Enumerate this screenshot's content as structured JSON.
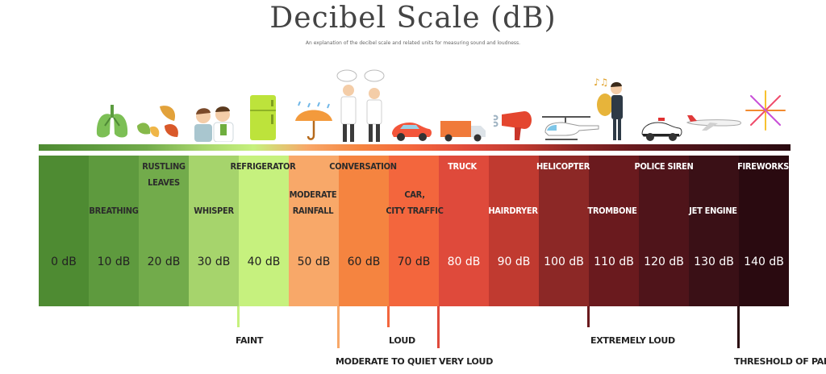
{
  "header": {
    "title": "Decibel Scale (dB)",
    "subtitle": "An explanation of the decibel scale and related units for measuring sound and loudness."
  },
  "scale": {
    "levels": [
      {
        "db": "0 dB",
        "color": "#4e8b32",
        "text": "#222222"
      },
      {
        "db": "10 dB",
        "color": "#5e9a3e",
        "text": "#222222"
      },
      {
        "db": "20 dB",
        "color": "#72ab4b",
        "text": "#222222"
      },
      {
        "db": "30 dB",
        "color": "#a6d46c",
        "text": "#222222"
      },
      {
        "db": "40 dB",
        "color": "#c6f17e",
        "text": "#222222"
      },
      {
        "db": "50 dB",
        "color": "#f8a869",
        "text": "#222222"
      },
      {
        "db": "60 dB",
        "color": "#f58440",
        "text": "#222222"
      },
      {
        "db": "70 dB",
        "color": "#f3663d",
        "text": "#222222"
      },
      {
        "db": "80 dB",
        "color": "#df4a3b",
        "text": "#ffffff"
      },
      {
        "db": "90 dB",
        "color": "#c03a30",
        "text": "#ffffff"
      },
      {
        "db": "100 dB",
        "color": "#8c2826",
        "text": "#ffffff"
      },
      {
        "db": "110 dB",
        "color": "#6a1a1e",
        "text": "#ffffff"
      },
      {
        "db": "120 dB",
        "color": "#4f141a",
        "text": "#ffffff"
      },
      {
        "db": "130 dB",
        "color": "#3a1016",
        "text": "#ffffff"
      },
      {
        "db": "140 dB",
        "color": "#2a0a10",
        "text": "#ffffff"
      }
    ],
    "sources": {
      "breathing": "BREATHING",
      "rustling_leaves": "RUSTLING\nLEAVES",
      "whisper": "WHISPER",
      "refrigerator": "REFRIGERATOR",
      "moderate_rainfall": "MODERATE\nRAINFALL",
      "conversation": "CONVERSATION",
      "car_city_traffic": "CAR,\nCITY TRAFFIC",
      "truck": "TRUCK",
      "hairdryer": "HAIRDRYER",
      "helicopter": "HELICOPTER",
      "trombone": "TROMBONE",
      "police_siren": "POLICE SIREN",
      "jet_engine": "JET ENGINE",
      "fireworks": "FIREWORKS"
    }
  },
  "categories": {
    "faint": "FAINT",
    "moderate_to_quiet": "MODERATE TO QUIET",
    "loud": "LOUD",
    "very_loud": "VERY LOUD",
    "extremely_loud": "EXTREMELY LOUD",
    "threshold_of_pain": "THRESHOLD OF PAIN"
  },
  "icons": [
    "lungs-icon",
    "leaves-icon",
    "whispering-people-icon",
    "refrigerator-icon",
    "umbrella-rain-icon",
    "conversing-people-icon",
    "car-icon",
    "truck-icon",
    "hairdryer-icon",
    "helicopter-icon",
    "trombone-player-icon",
    "police-car-icon",
    "airplane-icon",
    "fireworks-icon"
  ]
}
